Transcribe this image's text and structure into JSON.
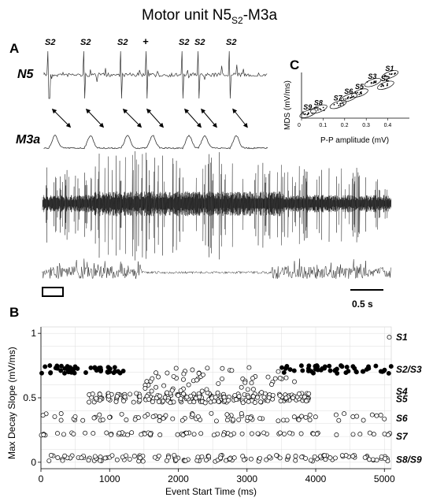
{
  "title": {
    "main": "Motor unit N5",
    "sub": "S2",
    "suffix": "-M3a"
  },
  "panels": {
    "a": "A",
    "b": "B",
    "c": "C"
  },
  "traces": {
    "n5_label": "N5",
    "m3a_label": "M3a",
    "spike_labels": [
      "S2",
      "S2",
      "S2",
      "+",
      "S2",
      "S2",
      "S2"
    ],
    "scale_bar": "0.5 s"
  },
  "chart_data": [
    {
      "type": "scatter",
      "panel": "C",
      "xlabel": "P-P amplitude (mV)",
      "ylabel": "MDS (mV/ms)",
      "xticks": [
        "0",
        "0.1",
        "0.2",
        "0.3",
        "0.4"
      ],
      "xlim": [
        0,
        0.5
      ],
      "clusters": [
        {
          "name": "S1",
          "x": 0.41,
          "y": 0.95
        },
        {
          "name": "S2",
          "x": 0.39,
          "y": 0.72
        },
        {
          "name": "S3",
          "x": 0.33,
          "y": 0.78
        },
        {
          "name": "S5",
          "x": 0.27,
          "y": 0.55
        },
        {
          "name": "S6",
          "x": 0.22,
          "y": 0.45
        },
        {
          "name": "S7",
          "x": 0.17,
          "y": 0.3
        },
        {
          "name": "S8",
          "x": 0.08,
          "y": 0.2
        },
        {
          "name": "S9",
          "x": 0.03,
          "y": 0.1
        }
      ]
    },
    {
      "type": "scatter",
      "panel": "B",
      "xlabel": "Event Start Time  (ms)",
      "ylabel": "Max Decay Slope  (mV/ms)",
      "xlim": [
        0,
        5100
      ],
      "ylim": [
        -0.05,
        1.05
      ],
      "xticks": [
        "0",
        "1000",
        "2000",
        "3000",
        "4000",
        "5000"
      ],
      "yticks": [
        "0",
        "0.5",
        "1"
      ],
      "grid": true,
      "right_labels": [
        {
          "text": "S1",
          "y": 0.97
        },
        {
          "text": "S2/S3",
          "y": 0.72
        },
        {
          "text": "S4",
          "y": 0.55
        },
        {
          "text": "S5",
          "y": 0.49
        },
        {
          "text": "S6",
          "y": 0.34
        },
        {
          "text": "S7",
          "y": 0.2
        },
        {
          "text": "S8/S9",
          "y": 0.02
        }
      ],
      "series": [
        {
          "name": "S2/S3",
          "marker": "filled",
          "y": 0.72,
          "spread": 0.03,
          "ranges": [
            [
              0,
              1200
            ],
            [
              3500,
              5100
            ]
          ],
          "count": 95
        },
        {
          "name": "S5",
          "marker": "open",
          "y": 0.5,
          "spread": 0.035,
          "ranges": [
            [
              700,
              3900
            ]
          ],
          "count": 170
        },
        {
          "name": "S6",
          "marker": "open",
          "y": 0.35,
          "spread": 0.03,
          "ranges": [
            [
              0,
              5100
            ]
          ],
          "count": 80
        },
        {
          "name": "S7",
          "marker": "open",
          "y": 0.22,
          "spread": 0.01,
          "ranges": [
            [
              0,
              5100
            ]
          ],
          "count": 70
        },
        {
          "name": "S8/S9",
          "marker": "open",
          "y": 0.03,
          "spread": 0.025,
          "ranges": [
            [
              0,
              5100
            ]
          ],
          "count": 130
        },
        {
          "name": "scattered",
          "marker": "open",
          "y": 0.6,
          "spread": 0.14,
          "ranges": [
            [
              1500,
              3700
            ]
          ],
          "count": 90
        },
        {
          "name": "S1",
          "marker": "open",
          "y": 0.97,
          "spread": 0.0,
          "ranges": [
            [
              5050,
              5090
            ]
          ],
          "count": 1
        }
      ]
    }
  ]
}
